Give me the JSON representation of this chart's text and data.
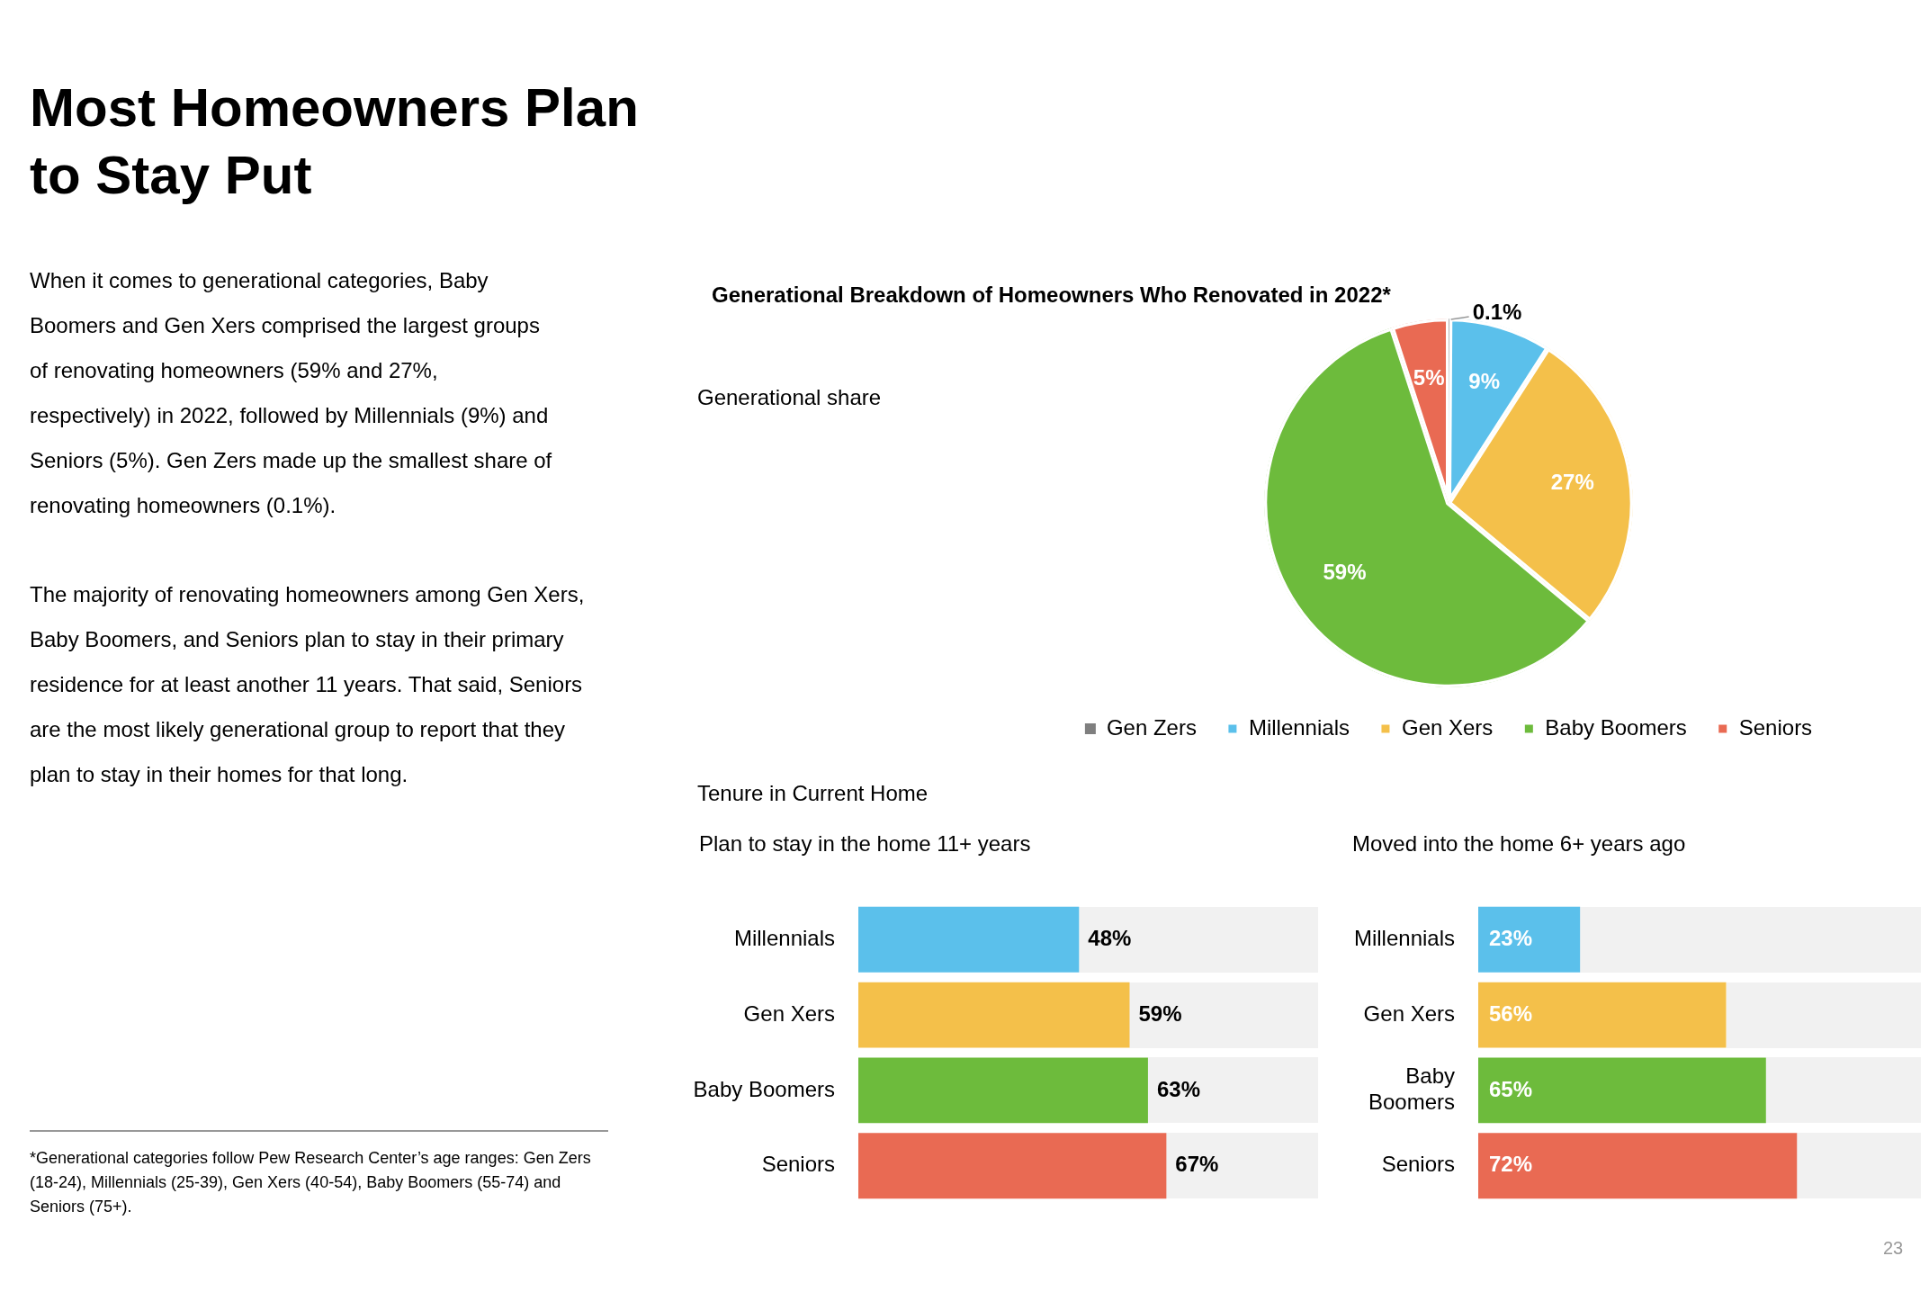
{
  "chart_data": [
    {
      "type": "other",
      "title": "Most Homeowners Plan to Stay Put",
      "annotations": [
        "When it comes to generational categories, Baby Boomers and Gen Xers comprised the largest groups of renovating homeowners (59% and 27%, respectively) in 2022, followed by Millennials (9%) and Seniors (5%). Gen Zers made up the smallest share of renovating homeowners (0.1%).",
        "The majority of renovating homeowners among Gen Xers, Baby Boomers, and Seniors plan to stay in their primary residence for at least another 11 years. That said, Seniors are the most likely  generational group to report that they plan to stay in their homes for that long.",
        "*Generational categories follow Pew Research Center’s age ranges: Gen Zers (18-24), Millennials (25-39), Gen Xers (40-54), Baby Boomers (55-74) and Seniors (75+).",
        "23"
      ]
    },
    {
      "type": "pie",
      "title": "Generational Breakdown of Homeowners Who Renovated in 2022*",
      "subtitle": "Generational share",
      "categories": [
        "Gen Zers",
        "Millennials",
        "Gen Xers",
        "Baby Boomers",
        "Seniors"
      ],
      "values": [
        0.1,
        9,
        27,
        59,
        5
      ],
      "colors": [
        "#7f7f7f",
        "#5bc0eb",
        "#f4c04a",
        "#6dbb3c",
        "#e96a53"
      ],
      "value_labels": [
        "0.1%",
        "9%",
        "27%",
        "59%",
        "5%"
      ],
      "legend": "bottom"
    },
    {
      "type": "bar",
      "orientation": "horizontal",
      "subtitle": "Tenure in Current Home",
      "title": "Plan to stay in the home 11+ years",
      "categories": [
        "Millennials",
        "Gen Xers",
        "Baby Boomers",
        "Seniors"
      ],
      "values": [
        48,
        59,
        63,
        67
      ],
      "colors": [
        "#5bc0eb",
        "#f4c04a",
        "#6dbb3c",
        "#e96a53"
      ],
      "xlim": [
        0,
        100
      ],
      "tick_labels": "y",
      "value_labels": [
        "48%",
        "59%",
        "63%",
        "67%"
      ]
    },
    {
      "type": "bar",
      "orientation": "horizontal",
      "title": "Moved into the home 6+ years ago",
      "categories": [
        "Millennials",
        "Gen Xers",
        "Baby Boomers",
        "Seniors"
      ],
      "values": [
        23,
        56,
        65,
        72
      ],
      "colors": [
        "#5bc0eb",
        "#f4c04a",
        "#6dbb3c",
        "#e96a53"
      ],
      "xlim": [
        0,
        100
      ],
      "tick_labels": "y",
      "value_labels": [
        "23%",
        "56%",
        "65%",
        "72%"
      ]
    }
  ]
}
